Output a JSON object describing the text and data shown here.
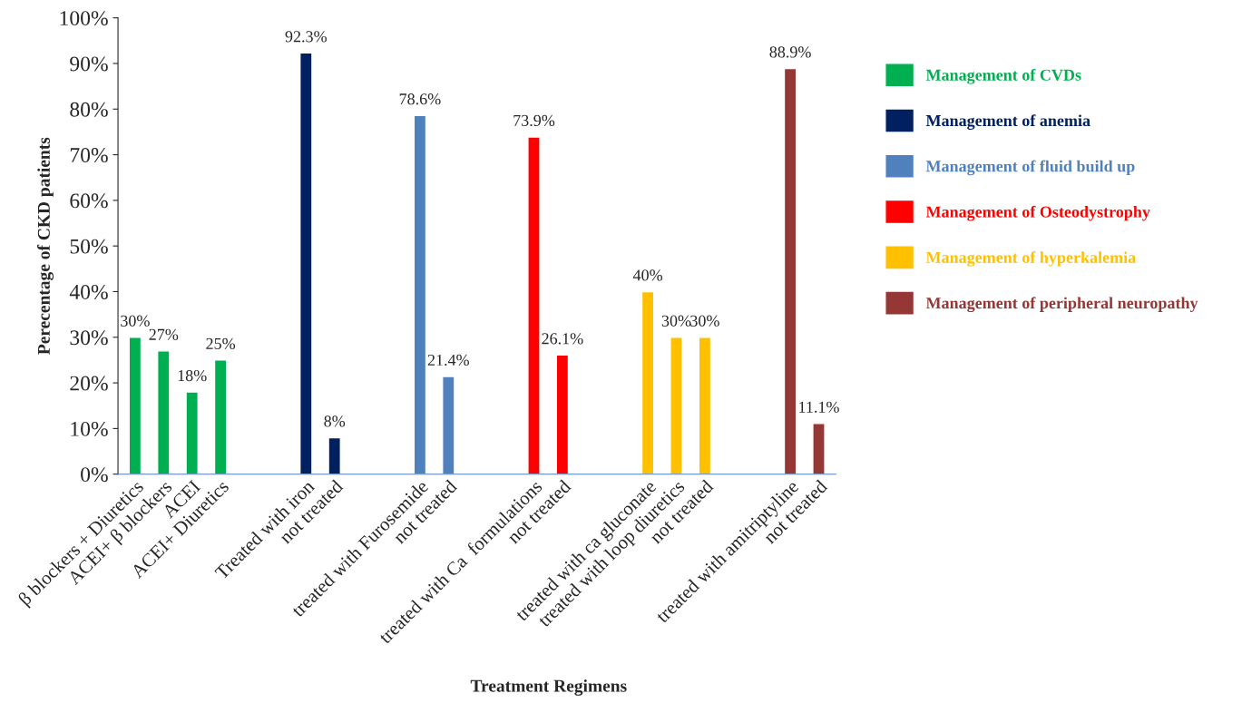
{
  "chart_data": {
    "type": "bar",
    "xlabel": "Treatment Regimens",
    "ylabel": "Perecentage of CKD patients",
    "categories": [
      "β blockers + Diuretics",
      "ACEI+ β blockers",
      "ACEI",
      "ACEI+ Diuretics",
      null,
      null,
      "Treated with iron",
      "not treated",
      null,
      null,
      "treated with Furosemide",
      "not treated",
      null,
      null,
      "treated with Ca  formulations",
      "not treated",
      null,
      null,
      "treated with ca gluconate",
      "treated with loop diuretics",
      "not treated",
      null,
      null,
      "treated with amitriptyline",
      "not treated"
    ],
    "series": [
      {
        "name": "Management of CVDs",
        "color": "#00b050",
        "values": [
          30,
          27,
          18,
          25,
          null,
          null,
          null,
          null,
          null,
          null,
          null,
          null,
          null,
          null,
          null,
          null,
          null,
          null,
          null,
          null,
          null,
          null,
          null,
          null,
          null
        ],
        "value_labels": [
          "30%",
          "27%",
          "18%",
          "25%",
          null,
          null,
          null,
          null,
          null,
          null,
          null,
          null,
          null,
          null,
          null,
          null,
          null,
          null,
          null,
          null,
          null,
          null,
          null,
          null,
          null
        ]
      },
      {
        "name": "Management of anemia",
        "color": "#002060",
        "values": [
          null,
          null,
          null,
          null,
          null,
          null,
          92.3,
          8,
          null,
          null,
          null,
          null,
          null,
          null,
          null,
          null,
          null,
          null,
          null,
          null,
          null,
          null,
          null,
          null,
          null
        ],
        "value_labels": [
          null,
          null,
          null,
          null,
          null,
          null,
          "92.3%",
          "8%",
          null,
          null,
          null,
          null,
          null,
          null,
          null,
          null,
          null,
          null,
          null,
          null,
          null,
          null,
          null,
          null,
          null
        ]
      },
      {
        "name": "Management of fluid build up",
        "color": "#4f81bd",
        "values": [
          null,
          null,
          null,
          null,
          null,
          null,
          null,
          null,
          null,
          null,
          78.6,
          21.4,
          null,
          null,
          null,
          null,
          null,
          null,
          null,
          null,
          null,
          null,
          null,
          null,
          null
        ],
        "value_labels": [
          null,
          null,
          null,
          null,
          null,
          null,
          null,
          null,
          null,
          null,
          "78.6%",
          "21.4%",
          null,
          null,
          null,
          null,
          null,
          null,
          null,
          null,
          null,
          null,
          null,
          null,
          null
        ]
      },
      {
        "name": "Management of Osteodystrophy",
        "color": "#ff0000",
        "values": [
          null,
          null,
          null,
          null,
          null,
          null,
          null,
          null,
          null,
          null,
          null,
          null,
          null,
          null,
          73.9,
          26.1,
          null,
          null,
          null,
          null,
          null,
          null,
          null,
          null,
          null
        ],
        "value_labels": [
          null,
          null,
          null,
          null,
          null,
          null,
          null,
          null,
          null,
          null,
          null,
          null,
          null,
          null,
          "73.9%",
          "26.1%",
          null,
          null,
          null,
          null,
          null,
          null,
          null,
          null,
          null
        ]
      },
      {
        "name": "Management of hyperkalemia",
        "color": "#ffc000",
        "values": [
          null,
          null,
          null,
          null,
          null,
          null,
          null,
          null,
          null,
          null,
          null,
          null,
          null,
          null,
          null,
          null,
          null,
          null,
          40,
          30,
          30,
          null,
          null,
          null,
          null
        ],
        "value_labels": [
          null,
          null,
          null,
          null,
          null,
          null,
          null,
          null,
          null,
          null,
          null,
          null,
          null,
          null,
          null,
          null,
          null,
          null,
          "40%",
          "30%",
          "30%",
          null,
          null,
          null,
          null
        ]
      },
      {
        "name": "Management of peripheral neuropathy",
        "color": "#953735",
        "values": [
          null,
          null,
          null,
          null,
          null,
          null,
          null,
          null,
          null,
          null,
          null,
          null,
          null,
          null,
          null,
          null,
          null,
          null,
          null,
          null,
          null,
          null,
          null,
          88.9,
          11.1
        ],
        "value_labels": [
          null,
          null,
          null,
          null,
          null,
          null,
          null,
          null,
          null,
          null,
          null,
          null,
          null,
          null,
          null,
          null,
          null,
          null,
          null,
          null,
          null,
          null,
          null,
          "88.9%",
          "11.1%"
        ]
      }
    ],
    "ylim": [
      0,
      100
    ],
    "yticks": [
      {
        "value": 0,
        "label": "0%"
      },
      {
        "value": 10,
        "label": "10%"
      },
      {
        "value": 20,
        "label": "20%"
      },
      {
        "value": 30,
        "label": "30%"
      },
      {
        "value": 40,
        "label": "40%"
      },
      {
        "value": 50,
        "label": "50%"
      },
      {
        "value": 60,
        "label": "60%"
      },
      {
        "value": 70,
        "label": "70%"
      },
      {
        "value": 80,
        "label": "80%"
      },
      {
        "value": 90,
        "label": "90%"
      },
      {
        "value": 100,
        "label": "100%"
      }
    ],
    "grid": false,
    "legend": "right"
  }
}
